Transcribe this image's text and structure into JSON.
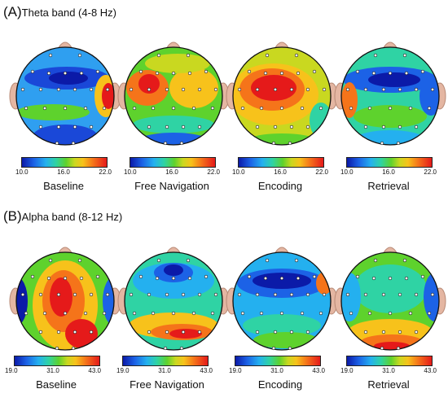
{
  "panels": [
    {
      "letter": "(A)",
      "title": "Theta band (4-8 Hz)",
      "ticks": [
        "10.0",
        "16.0",
        "22.0"
      ],
      "conditions": [
        "Baseline",
        "Free Navigation",
        "Encoding",
        "Retrieval"
      ]
    },
    {
      "letter": "(B)",
      "title": "Alpha band (8-12 Hz)",
      "ticks": [
        "19.0",
        "31.0",
        "43.0"
      ],
      "conditions": [
        "Baseline",
        "Free Navigation",
        "Encoding",
        "Retrieval"
      ]
    }
  ],
  "colorscale": [
    "#0b1aa8",
    "#1c62e6",
    "#24b0ef",
    "#2fd3a4",
    "#5ed22d",
    "#c9d820",
    "#f7c21b",
    "#f5741a",
    "#e51a1a"
  ],
  "maps": [
    {
      "id": "theta-baseline",
      "base": "#2f9ff0",
      "blobs": [
        {
          "cx": 72,
          "cy": 58,
          "rx": 52,
          "ry": 14,
          "fill": "#1a48d8"
        },
        {
          "cx": 74,
          "cy": 58,
          "rx": 24,
          "ry": 8,
          "fill": "#0b1aa8"
        },
        {
          "cx": 120,
          "cy": 80,
          "rx": 14,
          "ry": 26,
          "fill": "#f7c21b"
        },
        {
          "cx": 123,
          "cy": 80,
          "rx": 8,
          "ry": 16,
          "fill": "#e51a1a"
        },
        {
          "cx": 55,
          "cy": 100,
          "rx": 45,
          "ry": 10,
          "fill": "#5ed22d"
        },
        {
          "cx": 70,
          "cy": 130,
          "rx": 40,
          "ry": 15,
          "fill": "#1a48d8"
        }
      ]
    },
    {
      "id": "theta-free",
      "base": "#5ed22d",
      "blobs": [
        {
          "cx": 38,
          "cy": 70,
          "rx": 26,
          "ry": 22,
          "fill": "#f5741a"
        },
        {
          "cx": 40,
          "cy": 65,
          "rx": 13,
          "ry": 12,
          "fill": "#e51a1a"
        },
        {
          "cx": 95,
          "cy": 70,
          "rx": 30,
          "ry": 25,
          "fill": "#f7c21b"
        },
        {
          "cx": 70,
          "cy": 115,
          "rx": 50,
          "ry": 11,
          "fill": "#2fd3a4"
        },
        {
          "cx": 70,
          "cy": 138,
          "rx": 48,
          "ry": 13,
          "fill": "#1c62e6"
        },
        {
          "cx": 75,
          "cy": 40,
          "rx": 40,
          "ry": 12,
          "fill": "#c9d820"
        }
      ]
    },
    {
      "id": "theta-encoding",
      "base": "#c9d820",
      "blobs": [
        {
          "cx": 60,
          "cy": 78,
          "rx": 55,
          "ry": 38,
          "fill": "#f7c21b"
        },
        {
          "cx": 58,
          "cy": 72,
          "rx": 40,
          "ry": 26,
          "fill": "#f5741a"
        },
        {
          "cx": 60,
          "cy": 70,
          "rx": 28,
          "ry": 16,
          "fill": "#e51a1a"
        },
        {
          "cx": 70,
          "cy": 138,
          "rx": 48,
          "ry": 12,
          "fill": "#5ed22d"
        },
        {
          "cx": 118,
          "cy": 110,
          "rx": 14,
          "ry": 22,
          "fill": "#2fd3a4"
        }
      ]
    },
    {
      "id": "theta-retrieval",
      "base": "#2fd3a4",
      "blobs": [
        {
          "cx": 70,
          "cy": 60,
          "rx": 58,
          "ry": 16,
          "fill": "#1c62e6"
        },
        {
          "cx": 75,
          "cy": 60,
          "rx": 32,
          "ry": 9,
          "fill": "#0b1aa8"
        },
        {
          "cx": 20,
          "cy": 85,
          "rx": 10,
          "ry": 22,
          "fill": "#f5741a"
        },
        {
          "cx": 120,
          "cy": 80,
          "rx": 14,
          "ry": 24,
          "fill": "#1c62e6"
        },
        {
          "cx": 70,
          "cy": 105,
          "rx": 45,
          "ry": 14,
          "fill": "#5ed22d"
        },
        {
          "cx": 70,
          "cy": 135,
          "rx": 45,
          "ry": 13,
          "fill": "#24b0ef"
        }
      ]
    },
    {
      "id": "alpha-baseline",
      "base": "#5ed22d",
      "blobs": [
        {
          "cx": 70,
          "cy": 85,
          "rx": 40,
          "ry": 55,
          "fill": "#f7c21b"
        },
        {
          "cx": 68,
          "cy": 80,
          "rx": 26,
          "ry": 38,
          "fill": "#f5741a"
        },
        {
          "cx": 65,
          "cy": 75,
          "rx": 14,
          "ry": 24,
          "fill": "#e51a1a"
        },
        {
          "cx": 90,
          "cy": 120,
          "rx": 20,
          "ry": 18,
          "fill": "#e51a1a"
        },
        {
          "cx": 10,
          "cy": 80,
          "rx": 14,
          "ry": 30,
          "fill": "#0b1aa8"
        },
        {
          "cx": 130,
          "cy": 80,
          "rx": 14,
          "ry": 30,
          "fill": "#1c62e6"
        }
      ]
    },
    {
      "id": "alpha-free",
      "base": "#2fd3a4",
      "blobs": [
        {
          "cx": 70,
          "cy": 55,
          "rx": 50,
          "ry": 22,
          "fill": "#24b0ef"
        },
        {
          "cx": 70,
          "cy": 45,
          "rx": 24,
          "ry": 12,
          "fill": "#1c62e6"
        },
        {
          "cx": 70,
          "cy": 42,
          "rx": 12,
          "ry": 7,
          "fill": "#0b1aa8"
        },
        {
          "cx": 70,
          "cy": 110,
          "rx": 55,
          "ry": 16,
          "fill": "#f7c21b"
        },
        {
          "cx": 80,
          "cy": 118,
          "rx": 38,
          "ry": 10,
          "fill": "#f5741a"
        },
        {
          "cx": 85,
          "cy": 120,
          "rx": 20,
          "ry": 6,
          "fill": "#e51a1a"
        }
      ]
    },
    {
      "id": "alpha-encoding",
      "base": "#24b0ef",
      "blobs": [
        {
          "cx": 70,
          "cy": 58,
          "rx": 55,
          "ry": 18,
          "fill": "#1c62e6"
        },
        {
          "cx": 70,
          "cy": 55,
          "rx": 36,
          "ry": 10,
          "fill": "#0b1aa8"
        },
        {
          "cx": 70,
          "cy": 110,
          "rx": 48,
          "ry": 14,
          "fill": "#2fd3a4"
        },
        {
          "cx": 75,
          "cy": 128,
          "rx": 40,
          "ry": 10,
          "fill": "#5ed22d"
        },
        {
          "cx": 122,
          "cy": 58,
          "rx": 10,
          "ry": 14,
          "fill": "#f5741a"
        }
      ]
    },
    {
      "id": "alpha-retrieval",
      "base": "#5ed22d",
      "blobs": [
        {
          "cx": 70,
          "cy": 65,
          "rx": 45,
          "ry": 30,
          "fill": "#2fd3a4"
        },
        {
          "cx": 20,
          "cy": 75,
          "rx": 14,
          "ry": 30,
          "fill": "#24b0ef"
        },
        {
          "cx": 125,
          "cy": 75,
          "rx": 14,
          "ry": 30,
          "fill": "#1c62e6"
        },
        {
          "cx": 70,
          "cy": 118,
          "rx": 52,
          "ry": 16,
          "fill": "#f7c21b"
        },
        {
          "cx": 72,
          "cy": 130,
          "rx": 38,
          "ry": 9,
          "fill": "#f5741a"
        },
        {
          "cx": 72,
          "cy": 135,
          "rx": 22,
          "ry": 5,
          "fill": "#e51a1a"
        }
      ]
    }
  ]
}
